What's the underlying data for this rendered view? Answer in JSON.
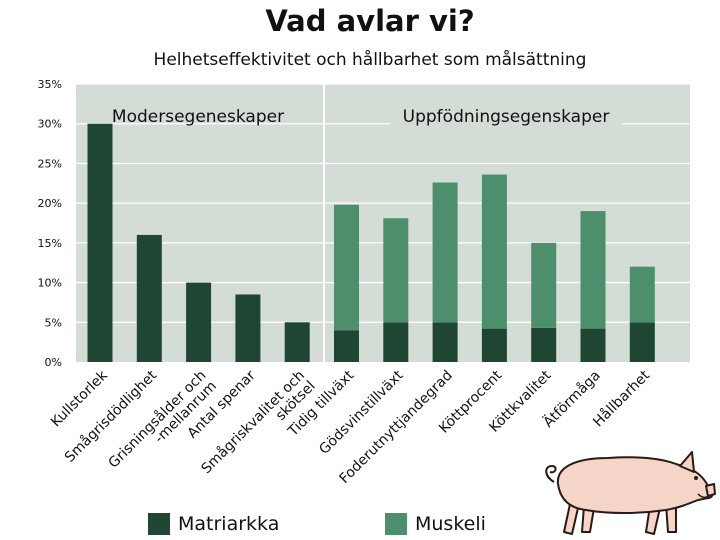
{
  "title": "Vad avlar vi?",
  "subtitle": "Helhetseffektivitet och hållbarhet som målsättning",
  "colors": {
    "plot_bg": "#d4dcd6",
    "grid": "#ffffff",
    "matriarkka": "#1f4633",
    "muskeli": "#4d8f6c",
    "text": "#111111"
  },
  "chart_data": {
    "type": "bar",
    "stacked": true,
    "ylim": [
      0,
      35
    ],
    "yticks": [
      "0%",
      "5%",
      "10%",
      "15%",
      "20%",
      "25%",
      "30%",
      "35%"
    ],
    "grid": true,
    "legend_position": "bottom",
    "groups": [
      {
        "label": "Modersegeneskaper",
        "categories": 5
      },
      {
        "label": "Uppfödningsegenskaper",
        "categories": 7
      }
    ],
    "categories": [
      "Kullstorlek",
      "Smågrisdödlighet",
      "Grisningsålder och -mellanrum",
      "Antal spenar",
      "Smågriskvalitet och skötsel",
      "Tidig tillväxt",
      "Gödsvinstillväxt",
      "Foderutnyttjandegrad",
      "Köttprocent",
      "Köttkvalitet",
      "Ätförmåga",
      "Hållbarhet"
    ],
    "series": [
      {
        "name": "Matriarkka",
        "values": [
          30,
          16,
          10,
          8.5,
          5,
          4,
          5,
          5,
          4.2,
          4.3,
          4.2,
          5
        ]
      },
      {
        "name": "Muskeli",
        "values": [
          0,
          0,
          0,
          0,
          0,
          15.8,
          13.1,
          17.6,
          19.4,
          10.7,
          14.8,
          7
        ]
      }
    ]
  }
}
